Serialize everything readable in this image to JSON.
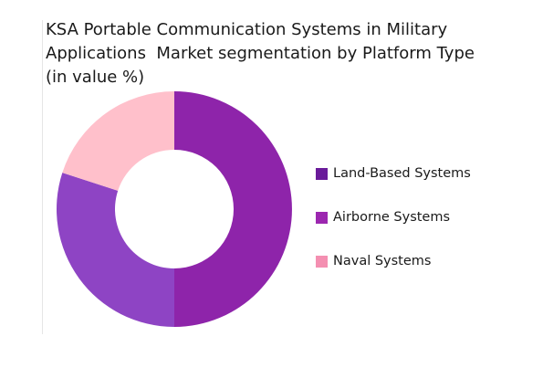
{
  "chart_data": {
    "type": "pie",
    "subtype": "donut",
    "title_lines": [
      "KSA Portable Communication Systems in Military",
      "Applications  Market segmentation by Platform Type",
      "(in value %)"
    ],
    "categories": [
      "Land-Based Systems",
      "Airborne Systems",
      "Naval Systems"
    ],
    "values": [
      50,
      30,
      20
    ],
    "colors": [
      "#8e24aa",
      "#8e44c4",
      "#ffc0cb"
    ],
    "legend_colors": [
      "#6a1b9a",
      "#9c27b0",
      "#f48fb1"
    ],
    "legend_position": "right",
    "start_angle_deg": 0,
    "direction": "clockwise"
  }
}
